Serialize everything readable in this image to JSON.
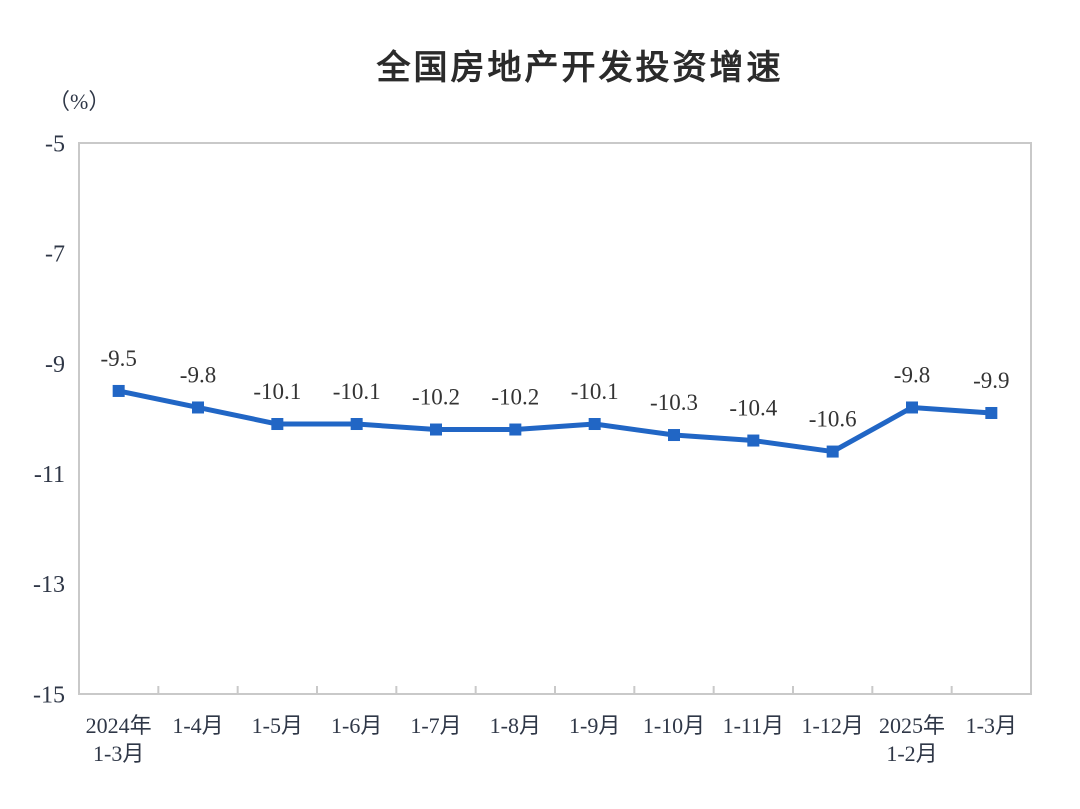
{
  "page": {
    "background": "#FFFFFF"
  },
  "chart_data": {
    "type": "line",
    "title": "全国房地产开发投资增速",
    "unit_label": "（%）",
    "categories": [
      "2024年\n1-3月",
      "1-4月",
      "1-5月",
      "1-6月",
      "1-7月",
      "1-8月",
      "1-9月",
      "1-10月",
      "1-11月",
      "1-12月",
      "2025年\n1-2月",
      "1-3月"
    ],
    "values": [
      -9.5,
      -9.8,
      -10.1,
      -10.1,
      -10.2,
      -10.2,
      -10.1,
      -10.3,
      -10.4,
      -10.6,
      -9.8,
      -9.9
    ],
    "data_labels": [
      "-9.5",
      "-9.8",
      "-10.1",
      "-10.1",
      "-10.2",
      "-10.2",
      "-10.1",
      "-10.3",
      "-10.4",
      "-10.6",
      "-9.8",
      "-9.9"
    ],
    "y_ticks": [
      -5,
      -7,
      -9,
      -11,
      -13,
      -15
    ],
    "y_tick_labels": [
      "-5",
      "-7",
      "-9",
      "-11",
      "-13",
      "-15"
    ],
    "ylim": [
      -15,
      -5
    ],
    "grid": false,
    "legend_position": "none",
    "marker": "square",
    "colors": {
      "line": "#2166C5",
      "marker": "#2166C5",
      "plot_border": "#C9C9C9",
      "axis_text": "#2F3747",
      "data_label_text": "#333333",
      "title_text": "#2B2B2B"
    }
  }
}
